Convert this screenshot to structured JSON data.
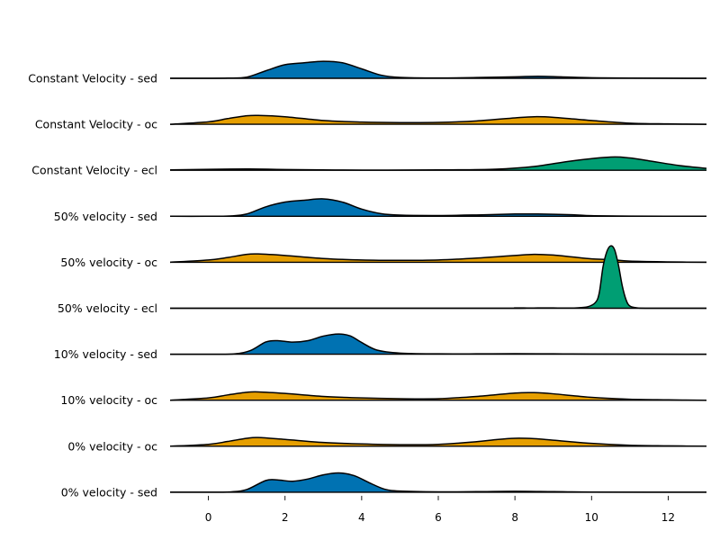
{
  "chart_data": {
    "type": "ridgeline",
    "title": "",
    "xlabel": "",
    "ylabel": "",
    "xlim": [
      -1,
      13
    ],
    "x_ticks": [
      0,
      2,
      4,
      6,
      8,
      10,
      12
    ],
    "grid": false,
    "colors": {
      "sed": "#0072b2",
      "oc": "#e69f00",
      "ecl": "#009e73",
      "line": "#000000"
    },
    "rows": [
      {
        "label": "Constant Velocity - sed",
        "kind": "sed",
        "profile": [
          [
            -1,
            0
          ],
          [
            0,
            0
          ],
          [
            0.5,
            0.01
          ],
          [
            1,
            0.06
          ],
          [
            1.5,
            0.4
          ],
          [
            2,
            0.72
          ],
          [
            2.5,
            0.82
          ],
          [
            3,
            0.9
          ],
          [
            3.5,
            0.82
          ],
          [
            4,
            0.5
          ],
          [
            4.5,
            0.17
          ],
          [
            5,
            0.05
          ],
          [
            6,
            0.02
          ],
          [
            7,
            0.04
          ],
          [
            8,
            0.08
          ],
          [
            8.6,
            0.11
          ],
          [
            9.2,
            0.08
          ],
          [
            10,
            0.03
          ],
          [
            11,
            0.01
          ],
          [
            13,
            0
          ]
        ]
      },
      {
        "label": "Constant Velocity - oc",
        "kind": "oc",
        "profile": [
          [
            -1,
            0
          ],
          [
            0,
            0.13
          ],
          [
            0.5,
            0.3
          ],
          [
            1,
            0.45
          ],
          [
            1.3,
            0.47
          ],
          [
            2,
            0.4
          ],
          [
            3,
            0.2
          ],
          [
            4,
            0.12
          ],
          [
            5,
            0.09
          ],
          [
            6,
            0.1
          ],
          [
            7,
            0.18
          ],
          [
            8,
            0.34
          ],
          [
            8.5,
            0.4
          ],
          [
            9,
            0.37
          ],
          [
            10,
            0.2
          ],
          [
            11,
            0.06
          ],
          [
            12,
            0.02
          ],
          [
            13,
            0
          ]
        ]
      },
      {
        "label": "Constant Velocity - ecl",
        "kind": "ecl",
        "profile": [
          [
            -1,
            0.02
          ],
          [
            1,
            0.07
          ],
          [
            2,
            0.04
          ],
          [
            4,
            0.01
          ],
          [
            6,
            0.02
          ],
          [
            7.5,
            0.06
          ],
          [
            8.5,
            0.2
          ],
          [
            9.5,
            0.5
          ],
          [
            10.5,
            0.7
          ],
          [
            11,
            0.65
          ],
          [
            11.5,
            0.5
          ],
          [
            12.3,
            0.25
          ],
          [
            13,
            0.1
          ]
        ]
      },
      {
        "label": "50% velocity - sed",
        "kind": "sed",
        "profile": [
          [
            -1,
            0
          ],
          [
            0,
            0
          ],
          [
            0.6,
            0.02
          ],
          [
            1,
            0.12
          ],
          [
            1.5,
            0.5
          ],
          [
            2,
            0.75
          ],
          [
            2.5,
            0.85
          ],
          [
            3,
            0.92
          ],
          [
            3.5,
            0.75
          ],
          [
            4,
            0.38
          ],
          [
            4.5,
            0.14
          ],
          [
            5,
            0.06
          ],
          [
            6,
            0.04
          ],
          [
            7,
            0.07
          ],
          [
            8,
            0.12
          ],
          [
            8.6,
            0.12
          ],
          [
            9.5,
            0.08
          ],
          [
            10,
            0.03
          ],
          [
            11,
            0.01
          ],
          [
            13,
            0
          ]
        ]
      },
      {
        "label": "50% velocity - oc",
        "kind": "oc",
        "profile": [
          [
            -1,
            0
          ],
          [
            0,
            0.12
          ],
          [
            0.5,
            0.25
          ],
          [
            1,
            0.42
          ],
          [
            1.3,
            0.44
          ],
          [
            2,
            0.36
          ],
          [
            3,
            0.2
          ],
          [
            4,
            0.12
          ],
          [
            5,
            0.1
          ],
          [
            6,
            0.12
          ],
          [
            7,
            0.22
          ],
          [
            8,
            0.36
          ],
          [
            8.5,
            0.42
          ],
          [
            9,
            0.38
          ],
          [
            9.5,
            0.28
          ],
          [
            10,
            0.18
          ],
          [
            10.5,
            0.14
          ],
          [
            11,
            0.06
          ],
          [
            12,
            0.02
          ],
          [
            13,
            0
          ]
        ]
      },
      {
        "label": "50% velocity - ecl",
        "kind": "ecl",
        "profile": [
          [
            -1,
            0
          ],
          [
            7.5,
            0
          ],
          [
            8,
            0.02
          ],
          [
            8.4,
            0.01
          ],
          [
            8.8,
            0.02
          ],
          [
            9.2,
            0.01
          ],
          [
            9.6,
            0.02
          ],
          [
            9.9,
            0.08
          ],
          [
            10.1,
            0.3
          ],
          [
            10.2,
            0.8
          ],
          [
            10.3,
            2.2
          ],
          [
            10.4,
            3.0
          ],
          [
            10.5,
            3.3
          ],
          [
            10.6,
            3.1
          ],
          [
            10.7,
            2.3
          ],
          [
            10.8,
            1.2
          ],
          [
            10.9,
            0.45
          ],
          [
            11,
            0.12
          ],
          [
            11.2,
            0.02
          ],
          [
            11.5,
            0
          ],
          [
            13,
            0
          ]
        ]
      },
      {
        "label": "10% velocity - sed",
        "kind": "sed",
        "profile": [
          [
            -1,
            0
          ],
          [
            0,
            0
          ],
          [
            0.7,
            0.02
          ],
          [
            1.1,
            0.2
          ],
          [
            1.5,
            0.65
          ],
          [
            1.8,
            0.72
          ],
          [
            2.2,
            0.64
          ],
          [
            2.6,
            0.72
          ],
          [
            3,
            0.96
          ],
          [
            3.4,
            1.07
          ],
          [
            3.7,
            0.97
          ],
          [
            4,
            0.62
          ],
          [
            4.4,
            0.22
          ],
          [
            5,
            0.06
          ],
          [
            6,
            0.02
          ],
          [
            7,
            0.02
          ],
          [
            8,
            0.03
          ],
          [
            9,
            0.02
          ],
          [
            10,
            0.01
          ],
          [
            13,
            0
          ]
        ]
      },
      {
        "label": "10% velocity - oc",
        "kind": "oc",
        "profile": [
          [
            -1,
            0
          ],
          [
            0,
            0.12
          ],
          [
            0.5,
            0.28
          ],
          [
            1,
            0.42
          ],
          [
            1.3,
            0.44
          ],
          [
            2,
            0.36
          ],
          [
            3,
            0.2
          ],
          [
            4,
            0.12
          ],
          [
            5,
            0.08
          ],
          [
            6,
            0.08
          ],
          [
            7,
            0.2
          ],
          [
            8,
            0.38
          ],
          [
            8.5,
            0.4
          ],
          [
            9,
            0.34
          ],
          [
            10,
            0.15
          ],
          [
            11,
            0.05
          ],
          [
            12,
            0.02
          ],
          [
            13,
            0
          ]
        ]
      },
      {
        "label": "0% velocity - oc",
        "kind": "oc",
        "profile": [
          [
            -1,
            0
          ],
          [
            0,
            0.1
          ],
          [
            0.5,
            0.25
          ],
          [
            1,
            0.42
          ],
          [
            1.3,
            0.46
          ],
          [
            2,
            0.36
          ],
          [
            3,
            0.2
          ],
          [
            4,
            0.12
          ],
          [
            5,
            0.08
          ],
          [
            6,
            0.1
          ],
          [
            7,
            0.24
          ],
          [
            7.5,
            0.35
          ],
          [
            8,
            0.42
          ],
          [
            8.5,
            0.4
          ],
          [
            9,
            0.32
          ],
          [
            10,
            0.15
          ],
          [
            11,
            0.05
          ],
          [
            12,
            0.02
          ],
          [
            13,
            0
          ]
        ]
      },
      {
        "label": "0% velocity - sed",
        "kind": "sed",
        "profile": [
          [
            -1,
            0
          ],
          [
            0,
            0
          ],
          [
            0.6,
            0.02
          ],
          [
            1,
            0.14
          ],
          [
            1.5,
            0.62
          ],
          [
            1.8,
            0.65
          ],
          [
            2.2,
            0.58
          ],
          [
            2.6,
            0.7
          ],
          [
            3,
            0.92
          ],
          [
            3.4,
            1.02
          ],
          [
            3.8,
            0.88
          ],
          [
            4.2,
            0.5
          ],
          [
            4.6,
            0.16
          ],
          [
            5,
            0.06
          ],
          [
            6,
            0.02
          ],
          [
            7,
            0.03
          ],
          [
            8,
            0.05
          ],
          [
            9,
            0.03
          ],
          [
            10,
            0.01
          ],
          [
            13,
            0
          ]
        ]
      }
    ]
  }
}
